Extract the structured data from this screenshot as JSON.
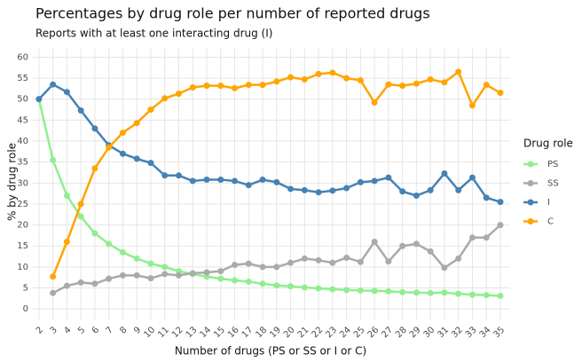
{
  "chart_data": {
    "type": "line",
    "title": "Percentages by drug role per number of reported drugs",
    "subtitle": "Reports with at least one interacting drug (I)",
    "x_label": "Number of drugs (PS or SS or I or C)",
    "y_label": "% by drug role",
    "legend_title": "Drug role",
    "legend_position": "right",
    "grid": true,
    "x": [
      2,
      3,
      4,
      5,
      6,
      7,
      8,
      9,
      10,
      11,
      12,
      13,
      14,
      15,
      16,
      17,
      18,
      19,
      20,
      21,
      22,
      23,
      24,
      25,
      26,
      27,
      28,
      29,
      30,
      31,
      32,
      33,
      34,
      35
    ],
    "xlim": [
      1.5,
      35.7
    ],
    "xticks": [
      2,
      3,
      4,
      5,
      6,
      7,
      8,
      9,
      10,
      11,
      12,
      13,
      14,
      15,
      16,
      17,
      18,
      19,
      20,
      21,
      22,
      23,
      24,
      25,
      26,
      27,
      28,
      29,
      30,
      31,
      32,
      33,
      34,
      35
    ],
    "ylim": [
      -2.5,
      62
    ],
    "yticks": [
      0,
      5,
      10,
      15,
      20,
      25,
      30,
      35,
      40,
      45,
      50,
      55,
      60
    ],
    "series": [
      {
        "name": "PS",
        "color": "#90ee90",
        "values": [
          50,
          35.5,
          27,
          22,
          18,
          15.5,
          13.5,
          12,
          10.8,
          10,
          9,
          8.3,
          7.7,
          7.2,
          6.8,
          6.5,
          6,
          5.6,
          5.4,
          5.1,
          4.9,
          4.7,
          4.5,
          4.4,
          4.3,
          4.2,
          4,
          3.9,
          3.8,
          3.9,
          3.6,
          3.4,
          3.3,
          3.1
        ]
      },
      {
        "name": "SS",
        "color": "#aaaaaa",
        "values": [
          null,
          3.8,
          5.5,
          6.3,
          6,
          7.2,
          8,
          8,
          7.3,
          8.3,
          8,
          8.5,
          8.7,
          9,
          10.5,
          10.8,
          10,
          10,
          11,
          12,
          11.6,
          11,
          12.2,
          11.2,
          16,
          11.3,
          15,
          15.5,
          13.7,
          9.8,
          12,
          17,
          17,
          20
        ]
      },
      {
        "name": "I",
        "color": "#4682b4",
        "values": [
          50,
          53.5,
          51.7,
          47.3,
          43,
          39,
          37,
          35.8,
          34.8,
          31.8,
          31.8,
          30.5,
          30.8,
          30.8,
          30.5,
          29.5,
          30.8,
          30.2,
          28.6,
          28.3,
          27.8,
          28.2,
          28.8,
          30.2,
          30.5,
          31.3,
          28,
          27,
          28.3,
          32.3,
          28.3,
          31.3,
          26.5,
          25.5
        ]
      },
      {
        "name": "C",
        "color": "#ffa500",
        "values": [
          null,
          7.7,
          16,
          25,
          33.5,
          38.5,
          42,
          44.3,
          47.5,
          50.2,
          51.3,
          52.8,
          53.2,
          53.2,
          52.6,
          53.4,
          53.4,
          54.2,
          55.2,
          54.7,
          56,
          56.3,
          55,
          54.5,
          49.2,
          53.5,
          53.2,
          53.7,
          54.7,
          54,
          56.5,
          48.5,
          53.4,
          51.5
        ]
      }
    ]
  }
}
